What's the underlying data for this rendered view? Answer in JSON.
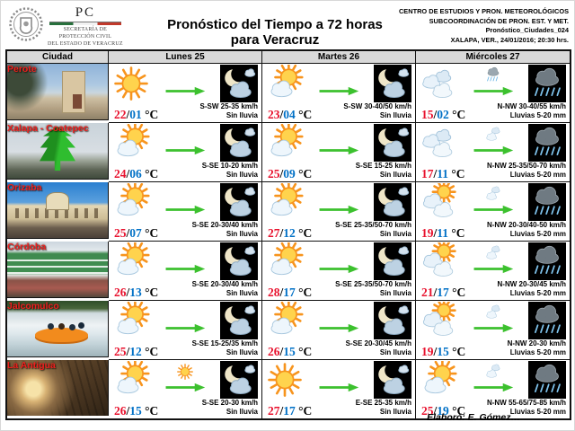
{
  "header": {
    "logo": {
      "acronym": "PC",
      "org_line1": "SECRETARÍA DE",
      "org_line2": "PROTECCIÓN CIVIL",
      "org_line3": "DEL ESTADO DE VERACRUZ"
    },
    "title": "Pronóstico del Tiempo a 72 horas para Veracruz",
    "meta": [
      "CENTRO DE ESTUDIOS Y PRON. METEOROLÓGICOS",
      "SUBCOORDINACIÓN DE PRON. EST. Y MET.",
      "Pronóstico_Ciudades_024",
      "XALAPA, VER., 24/01/2016; 20:30 hrs."
    ]
  },
  "table": {
    "columns": [
      "Ciudad",
      "Lunes 25",
      "Martes 26",
      "Miércoles 27"
    ],
    "temp_sep": "/",
    "temp_unit": "°C",
    "rows": [
      {
        "city": "Perote",
        "photo": "perote",
        "days": [
          {
            "day_icon": "sun",
            "trend_icon": "cloud-sun-small",
            "night_icon": "moon-clouds",
            "temp_max": "22",
            "temp_min": "01",
            "wind": "S-SW 25-35 km/h",
            "rain": "Sin lluvia"
          },
          {
            "day_icon": "sun-cloud",
            "trend_icon": "cloud-sun-small",
            "night_icon": "moon-clouds",
            "temp_max": "23",
            "temp_min": "04",
            "wind": "S-SW 30-40/50 km/h",
            "rain": "Sin lluvia"
          },
          {
            "day_icon": "clouds",
            "trend_icon": "rain-small",
            "night_icon": "night-rain",
            "temp_max": "15",
            "temp_min": "02",
            "wind": "N-NW 30-40/55 km/h",
            "rain": "Lluvias 5-20 mm"
          }
        ]
      },
      {
        "city": "Xalapa - Coatepec",
        "photo": "xalapa",
        "days": [
          {
            "day_icon": "sun-cloud",
            "trend_icon": "cloud-sun-small",
            "night_icon": "moon-clouds",
            "temp_max": "24",
            "temp_min": "06",
            "wind": "S-SE 10-20 km/h",
            "rain": "Sin lluvia"
          },
          {
            "day_icon": "sun-cloud",
            "trend_icon": "cloud-sun-small",
            "night_icon": "moon-clouds",
            "temp_max": "25",
            "temp_min": "09",
            "wind": "S-SE 15-25 km/h",
            "rain": "Sin lluvia"
          },
          {
            "day_icon": "clouds",
            "trend_icon": "clouds-small",
            "night_icon": "night-rain",
            "temp_max": "17",
            "temp_min": "11",
            "wind": "N-NW 25-35/50-70 km/h",
            "rain": "Lluvias 5-20 mm"
          }
        ]
      },
      {
        "city": "Orizaba",
        "photo": "orizaba",
        "days": [
          {
            "day_icon": "sun-cloud",
            "trend_icon": "cloud-sun-small",
            "night_icon": "moon-clouds",
            "temp_max": "25",
            "temp_min": "07",
            "wind": "S-SE 20-30/40 km/h",
            "rain": "Sin lluvia"
          },
          {
            "day_icon": "sun-cloud",
            "trend_icon": "cloud-sun-small",
            "night_icon": "moon-clouds",
            "temp_max": "27",
            "temp_min": "12",
            "wind": "S-SE 25-35/50-70 km/h",
            "rain": "Sin lluvia"
          },
          {
            "day_icon": "clouds-sun",
            "trend_icon": "clouds-small",
            "night_icon": "night-rain",
            "temp_max": "19",
            "temp_min": "11",
            "wind": "N-NW 20-30/40-50 km/h",
            "rain": "Lluvias 5-20 mm"
          }
        ]
      },
      {
        "city": "Córdoba",
        "photo": "cordoba",
        "days": [
          {
            "day_icon": "sun-cloud",
            "trend_icon": "cloud-sun-small",
            "night_icon": "moon-clouds",
            "temp_max": "26",
            "temp_min": "13",
            "wind": "S-SE 20-30/40 km/h",
            "rain": "Sin lluvia"
          },
          {
            "day_icon": "sun-cloud",
            "trend_icon": "cloud-sun-small",
            "night_icon": "moon-clouds",
            "temp_max": "28",
            "temp_min": "17",
            "wind": "S-SE 25-35/50-70 km/h",
            "rain": "Sin lluvia"
          },
          {
            "day_icon": "clouds-sun",
            "trend_icon": "clouds-small",
            "night_icon": "night-rain",
            "temp_max": "21",
            "temp_min": "17",
            "wind": "N-NW 20-30/45 km/h",
            "rain": "Lluvias 5-20 mm"
          }
        ]
      },
      {
        "city": "Jalcomulco",
        "photo": "jalcomulco",
        "days": [
          {
            "day_icon": "sun-cloud",
            "trend_icon": "cloud-sun-small",
            "night_icon": "moon-clouds",
            "temp_max": "25",
            "temp_min": "12",
            "wind": "S-SE 15-25/35 km/h",
            "rain": "Sin lluvia"
          },
          {
            "day_icon": "sun-cloud",
            "trend_icon": "cloud-sun-small",
            "night_icon": "moon-clouds",
            "temp_max": "26",
            "temp_min": "15",
            "wind": "S-SE 20-30/45 km/h",
            "rain": "Sin lluvia"
          },
          {
            "day_icon": "clouds-sun",
            "trend_icon": "clouds-small",
            "night_icon": "night-rain",
            "temp_max": "19",
            "temp_min": "15",
            "wind": "N-NW 20-30 km/h",
            "rain": "Lluvias 5-20 mm"
          }
        ]
      },
      {
        "city": "La Antigua",
        "photo": "antigua",
        "days": [
          {
            "day_icon": "sun-cloud",
            "trend_icon": "sun-small",
            "night_icon": "moon-clouds",
            "temp_max": "26",
            "temp_min": "15",
            "wind": "S-SE 20-30 km/h",
            "rain": "Sin lluvia"
          },
          {
            "day_icon": "sun",
            "trend_icon": "cloud-sun-small",
            "night_icon": "moon-clouds",
            "temp_max": "27",
            "temp_min": "17",
            "wind": "E-SE 25-35 km/h",
            "rain": "Sin lluvia"
          },
          {
            "day_icon": "sun-cloud",
            "trend_icon": "clouds-small",
            "night_icon": "night-rain",
            "temp_max": "25",
            "temp_min": "19",
            "wind": "N-NW 55-65/75-85 km/h",
            "rain": "Lluvias 5-20 mm"
          }
        ]
      }
    ]
  },
  "footer": {
    "credit": "Elaboró: E. Gómez…"
  },
  "colors": {
    "temp_max": "#e8112d",
    "temp_min": "#0070c6",
    "wind_arrow": "#3cc12e",
    "city_label": "#ee1f1f",
    "header_bg": "#d9d9d9",
    "night_bg": "#000000"
  }
}
